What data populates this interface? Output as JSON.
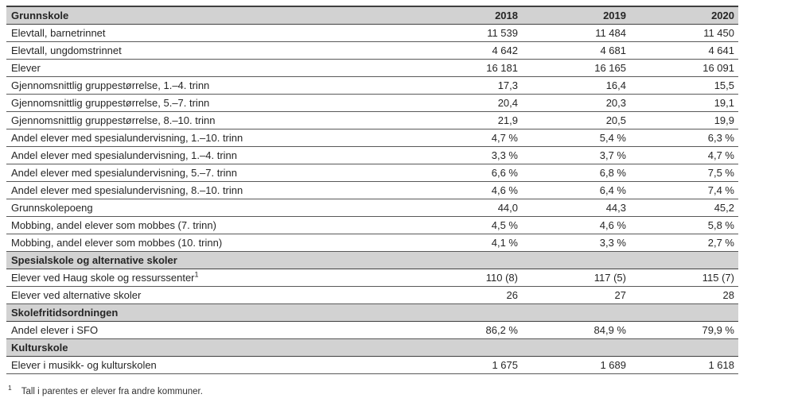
{
  "colors": {
    "header_bg": "#d2d2d2",
    "border_dark": "#404040",
    "border_row": "#595959",
    "text": "#262626"
  },
  "table": {
    "columns": [
      "Grunnskole",
      "2018",
      "2019",
      "2020"
    ],
    "rows": [
      {
        "type": "data",
        "label": "Elevtall, barnetrinnet",
        "values": [
          "11 539",
          "11 484",
          "11 450"
        ]
      },
      {
        "type": "data",
        "label": "Elevtall, ungdomstrinnet",
        "values": [
          "4 642",
          "4 681",
          "4 641"
        ]
      },
      {
        "type": "data",
        "label": "Elever",
        "values": [
          "16 181",
          "16 165",
          "16 091"
        ]
      },
      {
        "type": "data",
        "label": "Gjennomsnittlig gruppestørrelse, 1.–4. trinn",
        "values": [
          "17,3",
          "16,4",
          "15,5"
        ]
      },
      {
        "type": "data",
        "label": "Gjennomsnittlig gruppestørrelse, 5.–7. trinn",
        "values": [
          "20,4",
          "20,3",
          "19,1"
        ]
      },
      {
        "type": "data",
        "label": "Gjennomsnittlig gruppestørrelse, 8.–10. trinn",
        "values": [
          "21,9",
          "20,5",
          "19,9"
        ]
      },
      {
        "type": "data",
        "label": "Andel elever med spesialundervisning, 1.–10. trinn",
        "values": [
          "4,7 %",
          "5,4 %",
          "6,3 %"
        ]
      },
      {
        "type": "data",
        "label": "Andel elever med spesialundervisning, 1.–4. trinn",
        "values": [
          "3,3 %",
          "3,7 %",
          "4,7 %"
        ]
      },
      {
        "type": "data",
        "label": "Andel elever med spesialundervisning, 5.–7. trinn",
        "values": [
          "6,6 %",
          "6,8 %",
          "7,5 %"
        ]
      },
      {
        "type": "data",
        "label": "Andel elever med spesialundervisning, 8.–10. trinn",
        "values": [
          "4,6 %",
          "6,4 %",
          "7,4 %"
        ]
      },
      {
        "type": "data",
        "label": "Grunnskolepoeng",
        "values": [
          "44,0",
          "44,3",
          "45,2"
        ]
      },
      {
        "type": "data",
        "label": "Mobbing, andel elever som mobbes (7. trinn)",
        "values": [
          "4,5 %",
          "4,6 %",
          "5,8 %"
        ]
      },
      {
        "type": "data",
        "label": "Mobbing, andel elever som mobbes (10. trinn)",
        "values": [
          "4,1 %",
          "3,3 %",
          "2,7 %"
        ]
      },
      {
        "type": "section",
        "label": "Spesialskole og alternative skoler"
      },
      {
        "type": "data",
        "label": "Elever ved Haug skole og ressurssenter",
        "sup": "1",
        "values": [
          "110 (8)",
          "117 (5)",
          "115 (7)"
        ]
      },
      {
        "type": "data",
        "label": "Elever ved alternative skoler",
        "values": [
          "26",
          "27",
          "28"
        ]
      },
      {
        "type": "section",
        "label": "Skolefritidsordningen"
      },
      {
        "type": "data",
        "label": "Andel elever i SFO",
        "values": [
          "86,2 %",
          "84,9 %",
          "79,9 %"
        ]
      },
      {
        "type": "section",
        "label": "Kulturskole"
      },
      {
        "type": "data",
        "label": "Elever i musikk- og kulturskolen",
        "values": [
          "1 675",
          "1 689",
          "1 618"
        ]
      }
    ]
  },
  "footnote": {
    "marker": "1",
    "text": "Tall i parentes er elever fra andre kommuner."
  }
}
